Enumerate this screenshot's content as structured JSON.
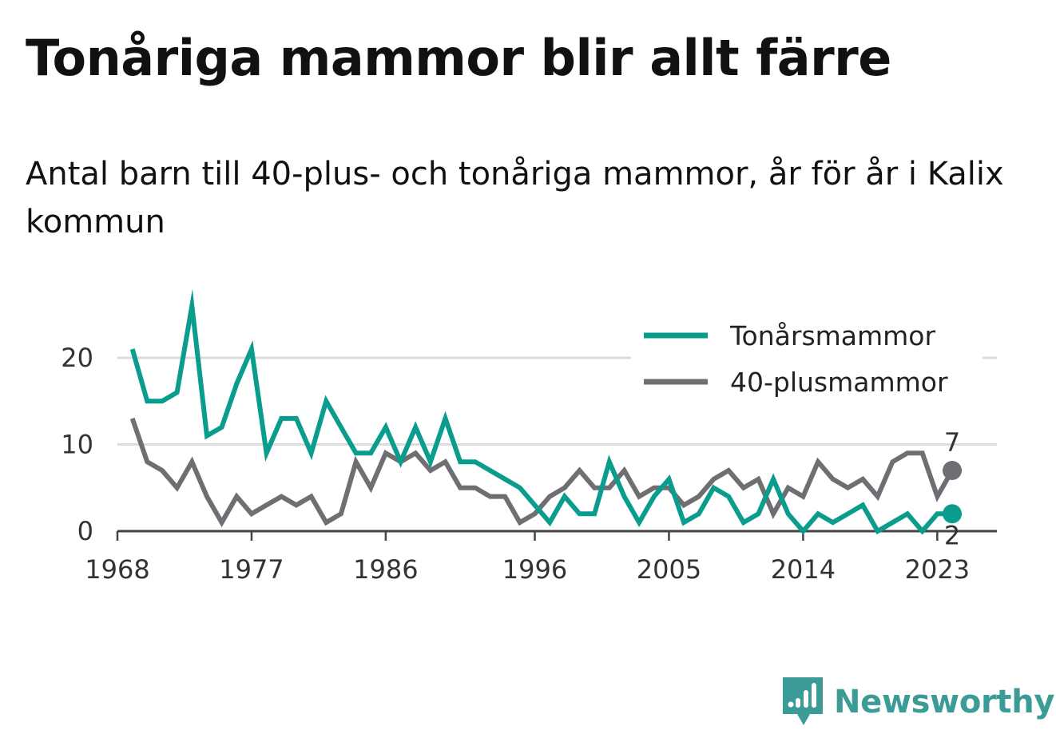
{
  "title": "Tonåriga mammor blir allt färre",
  "subtitle": "Antal barn till 40-plus- och tonåriga mammor, år för år i Kalix kommun",
  "brand": {
    "name": "Newsworthy",
    "icon": "newsworthy-logo-icon",
    "color": "#3b9c97"
  },
  "chart_data": {
    "type": "line",
    "title": "Tonåriga mammor blir allt färre",
    "subtitle": "Antal barn till 40-plus- och tonåriga mammor, år för år i Kalix kommun",
    "xlabel": "",
    "ylabel": "",
    "x_ticks": [
      "1968",
      "1977",
      "1986",
      "1996",
      "2005",
      "2014",
      "2023"
    ],
    "y_ticks": [
      "0",
      "10",
      "20"
    ],
    "xlim": [
      1968,
      2027
    ],
    "ylim": [
      0,
      27
    ],
    "grid": "horizontal",
    "legend_position": "top-right",
    "x": [
      1969,
      1970,
      1971,
      1972,
      1973,
      1974,
      1975,
      1976,
      1977,
      1978,
      1979,
      1980,
      1981,
      1982,
      1983,
      1984,
      1985,
      1986,
      1987,
      1988,
      1989,
      1990,
      1991,
      1992,
      1993,
      1994,
      1995,
      1996,
      1997,
      1998,
      1999,
      2000,
      2001,
      2002,
      2003,
      2004,
      2005,
      2006,
      2007,
      2008,
      2009,
      2010,
      2011,
      2012,
      2013,
      2014,
      2015,
      2016,
      2017,
      2018,
      2019,
      2020,
      2021,
      2022,
      2023,
      2024
    ],
    "series": [
      {
        "name": "Tonårsmammor",
        "color": "#0a9d8e",
        "values": [
          21,
          15,
          15,
          16,
          26,
          11,
          12,
          17,
          21,
          9,
          13,
          13,
          9,
          15,
          12,
          9,
          9,
          12,
          8,
          12,
          8,
          13,
          8,
          8,
          7,
          6,
          5,
          3,
          1,
          4,
          2,
          2,
          8,
          4,
          1,
          4,
          6,
          1,
          2,
          5,
          4,
          1,
          2,
          6,
          2,
          0,
          2,
          1,
          2,
          3,
          0,
          1,
          2,
          0,
          2,
          2
        ],
        "end_label": "2"
      },
      {
        "name": "40-plusmammor",
        "color": "#6e6e73",
        "values": [
          13,
          8,
          7,
          5,
          8,
          4,
          1,
          4,
          2,
          3,
          4,
          3,
          4,
          1,
          2,
          8,
          5,
          9,
          8,
          9,
          7,
          8,
          5,
          5,
          4,
          4,
          1,
          2,
          4,
          5,
          7,
          5,
          5,
          7,
          4,
          5,
          5,
          3,
          4,
          6,
          7,
          5,
          6,
          2,
          5,
          4,
          8,
          6,
          5,
          6,
          4,
          8,
          9,
          9,
          4,
          7
        ],
        "end_label": "7"
      }
    ]
  }
}
